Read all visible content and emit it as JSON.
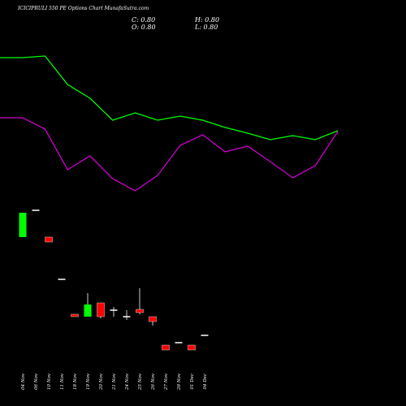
{
  "chart_data": {
    "type": "candlestick",
    "title": "ICICIPRULI 550  PE Options  Chart MunafaSutra.com",
    "ohlc_labels": [
      "C: 0.80",
      "H: 0.80",
      "O: 0.80",
      "L: 0.80"
    ],
    "categories": [
      "04 Nov",
      "06 Nov",
      "10 Nov",
      "11 Nov",
      "18 Nov",
      "19 Nov",
      "20 Nov",
      "21 Nov",
      "24 Nov",
      "25 Nov",
      "26 Nov",
      "27 Nov",
      "28 Nov",
      "01 Dec",
      "04 Dec"
    ],
    "open": [
      2.01,
      2.34,
      2.01,
      1.49,
      1.06,
      1.03,
      1.2,
      1.11,
      1.03,
      1.12,
      1.03,
      0.68,
      0.71,
      0.68,
      0.8
    ],
    "high": [
      2.31,
      2.34,
      2.01,
      1.49,
      1.06,
      1.32,
      1.2,
      1.15,
      1.11,
      1.38,
      1.03,
      0.68,
      0.71,
      0.68,
      0.8
    ],
    "low": [
      2.01,
      2.34,
      1.95,
      1.49,
      1.03,
      1.03,
      1.01,
      1.03,
      0.99,
      1.06,
      0.92,
      0.62,
      0.71,
      0.62,
      0.8
    ],
    "close": [
      2.31,
      2.34,
      1.95,
      1.49,
      1.03,
      1.18,
      1.03,
      1.11,
      1.03,
      1.08,
      0.97,
      0.62,
      0.71,
      0.62,
      0.8
    ],
    "ylim": [
      -0.07,
      2.43
    ],
    "up_color": "#00ff00",
    "down_color": "#ff0000",
    "flat_color": "#ffffff",
    "overlay_ylim": [
      0,
      2.5
    ],
    "overlay": [
      {
        "color": "#00ff00",
        "values": [
          1.79,
          1.79,
          1.81,
          1.46,
          1.29,
          1.02,
          1.11,
          1.02,
          1.07,
          1.02,
          0.93,
          0.86,
          0.78,
          0.83,
          0.78,
          0.89
        ]
      },
      {
        "color": "#cc00cc",
        "values": [
          1.05,
          1.05,
          0.91,
          0.41,
          0.58,
          0.3,
          0.15,
          0.34,
          0.71,
          0.84,
          0.63,
          0.7,
          0.51,
          0.31,
          0.46,
          0.88
        ]
      }
    ]
  }
}
